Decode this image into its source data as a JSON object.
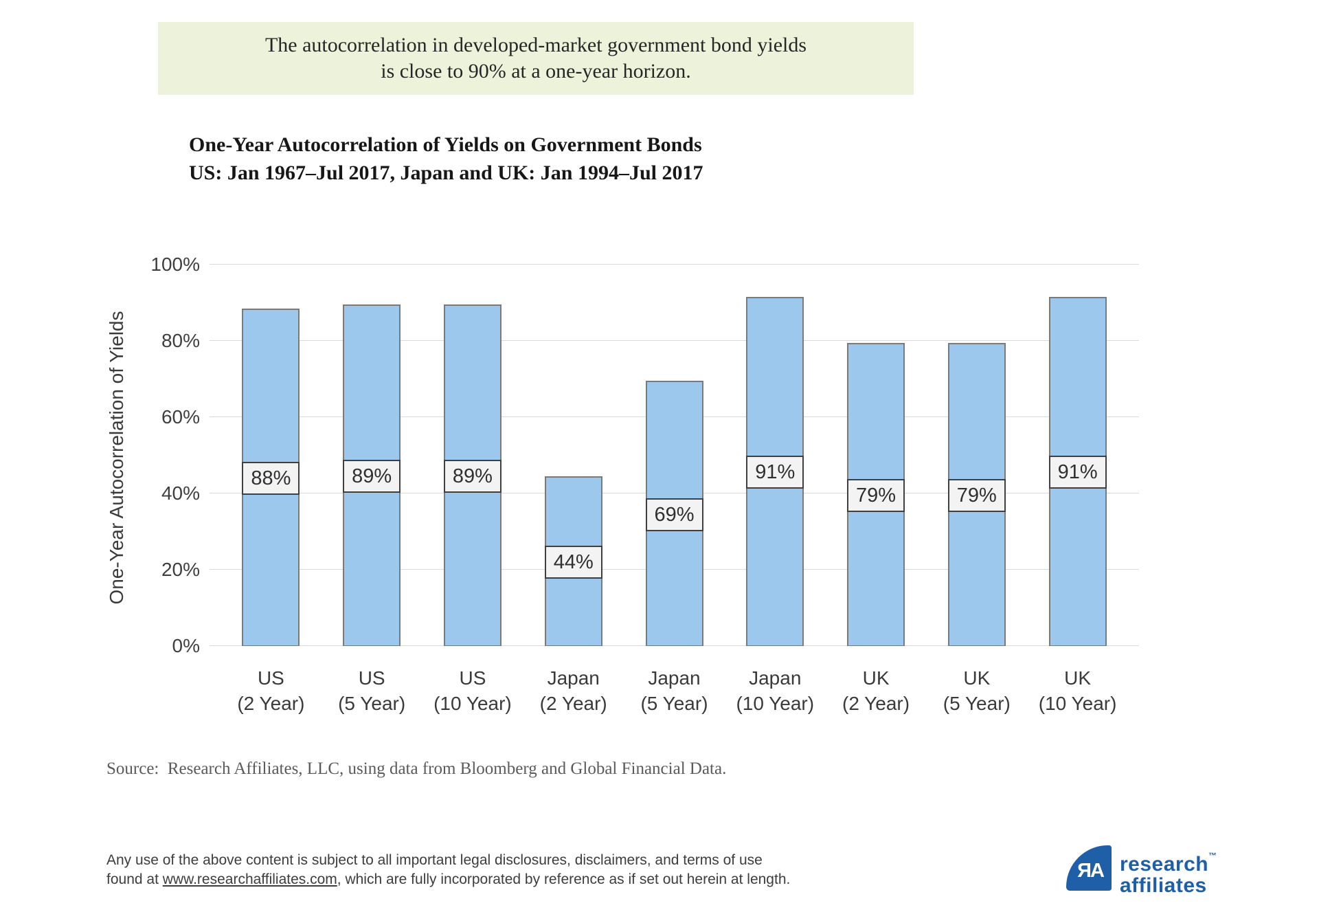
{
  "banner": {
    "line1": "The autocorrelation in developed-market government bond yields",
    "line2": "is close to 90% at a one-year horizon."
  },
  "chart": {
    "title_line1": "One-Year Autocorrelation of Yields on Government Bonds",
    "title_line2": "US: Jan 1967–Jul 2017, Japan and UK: Jan 1994–Jul 2017"
  },
  "chart_data": {
    "type": "bar",
    "title": "One-Year Autocorrelation of Yields on Government Bonds",
    "subtitle": "US: Jan 1967–Jul 2017, Japan and UK: Jan 1994–Jul 2017",
    "categories": [
      "US (2 Year)",
      "US (5 Year)",
      "US (10 Year)",
      "Japan (2 Year)",
      "Japan (5 Year)",
      "Japan (10 Year)",
      "UK (2 Year)",
      "UK (5 Year)",
      "UK (10 Year)"
    ],
    "values": [
      88,
      89,
      89,
      44,
      69,
      91,
      79,
      79,
      91
    ],
    "bar_labels": [
      "88%",
      "89%",
      "89%",
      "44%",
      "69%",
      "91%",
      "79%",
      "79%",
      "91%"
    ],
    "xlabel": "",
    "ylabel": "One-Year Autocorrelation of Yields",
    "ylim": [
      0,
      100
    ],
    "yticks": [
      0,
      20,
      40,
      60,
      80,
      100
    ],
    "ytick_labels": [
      "0%",
      "20%",
      "40%",
      "60%",
      "80%",
      "100%"
    ],
    "grid": true,
    "legend": false,
    "bar_color": "#9cc8ed",
    "bar_border_color": "#7a7a7a",
    "label_box_bg": "#f3f3f3",
    "label_box_border": "#3f3f3f",
    "gridline_color": "#d9d9d9"
  },
  "source": {
    "text": "Source:  Research Affiliates, LLC, using data from Bloomberg and Global Financial Data."
  },
  "disclaimer": {
    "line1": "Any use of the above content is subject to all important legal disclosures, disclaimers, and terms of use found at",
    "link_text": "www.researchaffiliates.com",
    "line2_rest": ", which are fully incorporated by reference as if set out herein at length."
  },
  "logo": {
    "monogram": "ЯA",
    "word1": "research",
    "word2": "affiliates",
    "tm": "™",
    "brand_color": "#1e5fa8"
  }
}
